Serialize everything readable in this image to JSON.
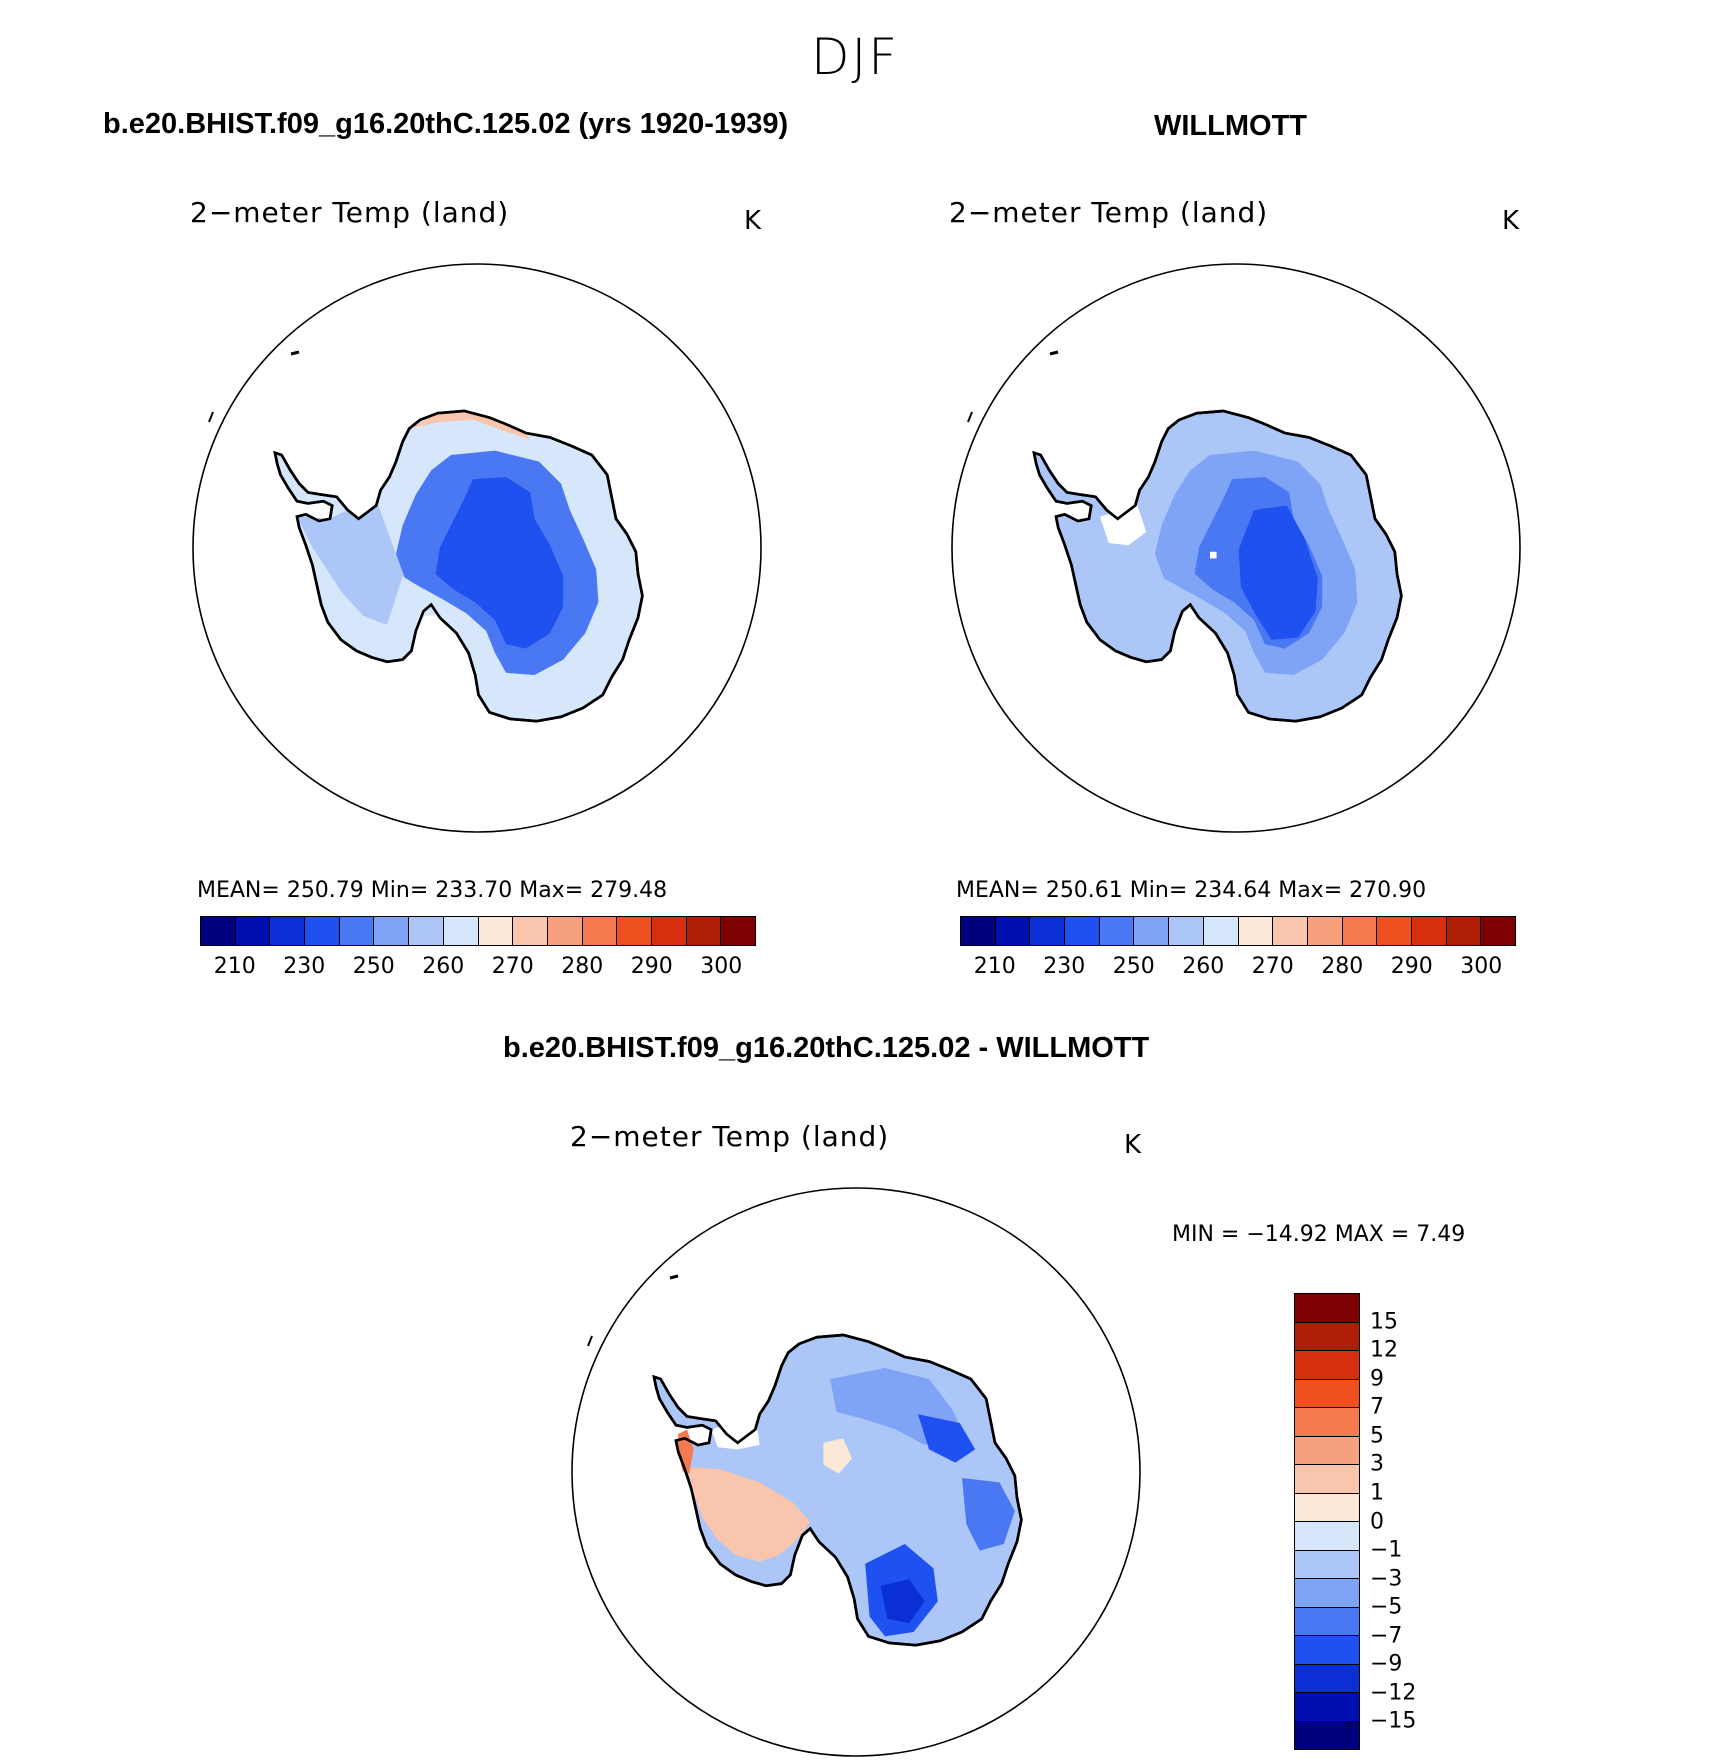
{
  "figure": {
    "title": "DJF"
  },
  "panels": [
    {
      "title": "b.e20.BHIST.f09_g16.20thC.125.02 (yrs 1920-1939)",
      "variable": "2−meter Temp (land)",
      "units": "K",
      "stats": "MEAN=  250.79   Min=  233.70   Max=  279.48"
    },
    {
      "title": "WILLMOTT",
      "variable": "2−meter Temp (land)",
      "units": "K",
      "stats": "MEAN=  250.61   Min=  234.64   Max=  270.90"
    },
    {
      "title": "b.e20.BHIST.f09_g16.20thC.125.02 - WILLMOTT",
      "variable": "2−meter Temp (land)",
      "units": "K",
      "stats": "MIN  =  −14.92  MAX  =     7.49"
    }
  ],
  "abs_colorbar": {
    "colors": [
      "#00007f",
      "#0010b0",
      "#0a2fd4",
      "#1f50f0",
      "#4a78f2",
      "#7fa3f5",
      "#adc6f8",
      "#d6e6fb",
      "#fde8d8",
      "#f9c5ad",
      "#f6a07e",
      "#f57a50",
      "#f0501f",
      "#d63010",
      "#ad1e05",
      "#7f0000"
    ],
    "ticks": [
      "210",
      "230",
      "250",
      "260",
      "270",
      "280",
      "290",
      "300"
    ]
  },
  "diff_colorbar": {
    "colors": [
      "#7f0000",
      "#ad1e05",
      "#d63010",
      "#f0501f",
      "#f57a50",
      "#f6a07e",
      "#f9c5ad",
      "#fde8d8",
      "#d6e6fb",
      "#adc6f8",
      "#7fa3f5",
      "#4a78f2",
      "#1f50f0",
      "#0a2fd4",
      "#0010b0",
      "#00007f"
    ],
    "ticks": [
      "15",
      "12",
      "9",
      "7",
      "5",
      "3",
      "1",
      "0",
      "−1",
      "−3",
      "−5",
      "−7",
      "−9",
      "−12",
      "−15"
    ]
  },
  "map_colors": {
    "deep_blue": "#1f50f0",
    "mid_blue": "#4a78f2",
    "light_blue": "#7fa3f5",
    "pale_blue": "#adc6f8",
    "paler_blue": "#d6e6fb",
    "peach": "#fde8d8",
    "salmon": "#f9c5ad",
    "orange": "#f6a07e",
    "red_orange": "#f57a50",
    "navy": "#0a2fd4"
  }
}
